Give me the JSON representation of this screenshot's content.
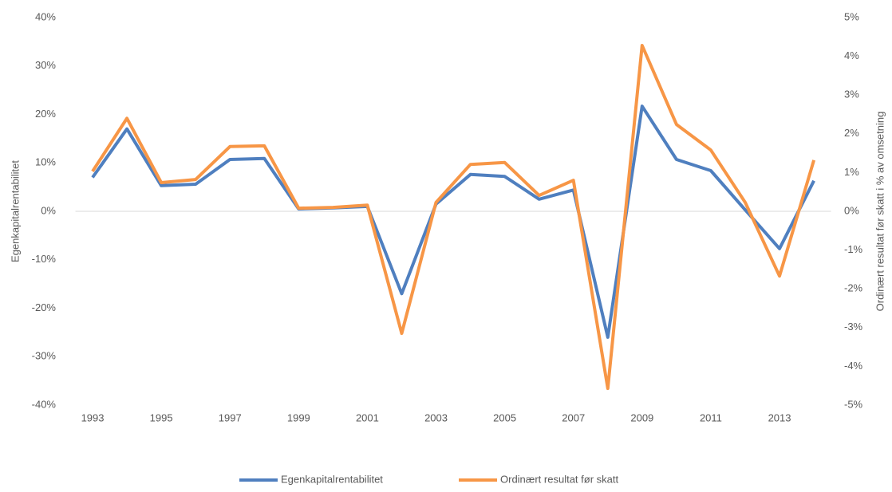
{
  "chart_data": {
    "type": "line",
    "ylabel": "Egenkapitalrentabilitet",
    "y2label": "Ordinært resultat før skatt i % av omsetning",
    "x": [
      1993,
      1994,
      1995,
      1996,
      1997,
      1998,
      1999,
      2000,
      2001,
      2002,
      2003,
      2004,
      2005,
      2006,
      2007,
      2008,
      2009,
      2010,
      2011,
      2012,
      2013,
      2014
    ],
    "xlim": [
      1992.5,
      2014.5
    ],
    "xticks": [
      1993,
      1995,
      1997,
      1999,
      2001,
      2003,
      2005,
      2007,
      2009,
      2011,
      2013
    ],
    "ylim": [
      -40,
      40
    ],
    "yticks": [
      {
        "value": -40,
        "label": "-40%"
      },
      {
        "value": -30,
        "label": "-30%"
      },
      {
        "value": -20,
        "label": "-20%"
      },
      {
        "value": -10,
        "label": "-10%"
      },
      {
        "value": 0,
        "label": "0%"
      },
      {
        "value": 10,
        "label": "10%"
      },
      {
        "value": 20,
        "label": "20%"
      },
      {
        "value": 30,
        "label": "30%"
      },
      {
        "value": 40,
        "label": "40%"
      }
    ],
    "y2lim": [
      -5,
      5
    ],
    "y2ticks": [
      {
        "value": -5,
        "label": "-5%"
      },
      {
        "value": -4,
        "label": "-4%"
      },
      {
        "value": -3,
        "label": "-3%"
      },
      {
        "value": -2,
        "label": "-2%"
      },
      {
        "value": -1,
        "label": "-1%"
      },
      {
        "value": 0,
        "label": "0%"
      },
      {
        "value": 1,
        "label": "1%"
      },
      {
        "value": 2,
        "label": "2%"
      },
      {
        "value": 3,
        "label": "3%"
      },
      {
        "value": 4,
        "label": "4%"
      },
      {
        "value": 5,
        "label": "5%"
      }
    ],
    "legend": "bottom",
    "series": [
      {
        "name": "Egenkapitalrentabilitet",
        "color": "#4f7fbf",
        "values": [
          7,
          17,
          5.3,
          5.6,
          10.7,
          10.9,
          0.5,
          0.7,
          1.0,
          -17,
          1.5,
          7.6,
          7.2,
          2.5,
          4.4,
          -26,
          21.7,
          10.7,
          8.4,
          0.3,
          -7.7,
          6.3
        ]
      },
      {
        "name": "Ordinært resultat før skatt",
        "color": "#f79646",
        "axis": "y2",
        "values": [
          1.03,
          2.4,
          0.74,
          0.82,
          1.67,
          1.69,
          0.08,
          0.1,
          0.16,
          -3.15,
          0.23,
          1.21,
          1.26,
          0.41,
          0.8,
          -4.57,
          4.28,
          2.24,
          1.58,
          0.23,
          -1.67,
          1.32
        ]
      }
    ]
  }
}
